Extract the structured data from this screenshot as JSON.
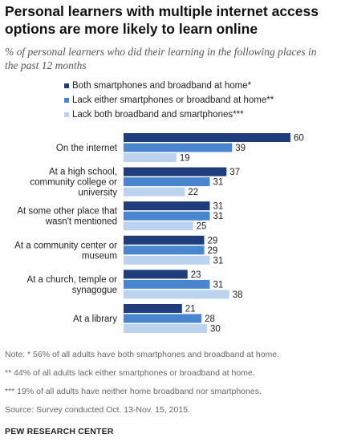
{
  "title": "Personal learners with multiple internet access options are more likely to learn online",
  "subtitle": "% of personal learners who did their learning in the following places in the past 12 months",
  "chart_data": {
    "type": "bar",
    "orientation": "horizontal",
    "categories": [
      [
        "On the internet"
      ],
      [
        "At a high school,",
        "community college or",
        "university"
      ],
      [
        "At some other place that",
        "wasn't mentioned"
      ],
      [
        "At a community center or",
        "museum"
      ],
      [
        "At a church, temple or",
        "synagogue"
      ],
      [
        "At a library"
      ]
    ],
    "series": [
      {
        "name": "Both smartphones and broadband at home*",
        "color": "#1f3d7a",
        "values": [
          60,
          37,
          31,
          29,
          23,
          21
        ]
      },
      {
        "name": "Lack either smartphones or broadband at home**",
        "color": "#4a86cf",
        "values": [
          39,
          31,
          31,
          29,
          31,
          28
        ]
      },
      {
        "name": "Lack both broadband and smartphones***",
        "color": "#bcd3ef",
        "values": [
          19,
          22,
          25,
          31,
          38,
          30
        ]
      }
    ],
    "xlim": [
      0,
      60
    ],
    "legend": "top",
    "grid": false
  },
  "notes": [
    "Note: * 56% of all adults have both smartphones and broadband at home.",
    "** 44% of all adults lack either smartphones or broadband at home.",
    "*** 19% of all adults have neither home broadband nor smartphones.",
    "Source: Survey conducted Oct. 13-Nov. 15, 2015."
  ],
  "brand": "PEW RESEARCH CENTER"
}
